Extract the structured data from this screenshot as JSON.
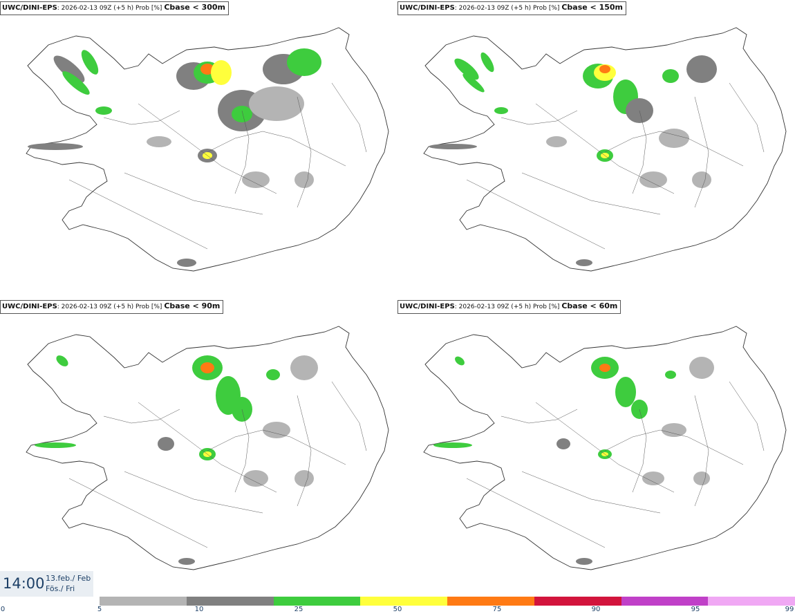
{
  "panels": [
    {
      "model": "UWC/DINI-EPS",
      "info": ": 2026-02-13 09Z (+5 h) Prob [%]",
      "threshold": "Cbase < 300m"
    },
    {
      "model": "UWC/DINI-EPS",
      "info": ": 2026-02-13 09Z (+5 h) Prob [%]",
      "threshold": "Cbase < 150m"
    },
    {
      "model": "UWC/DINI-EPS",
      "info": ": 2026-02-13 09Z (+5 h) Prob [%]",
      "threshold": "Cbase < 90m"
    },
    {
      "model": "UWC/DINI-EPS",
      "info": ": 2026-02-13 09Z (+5 h) Prob [%]",
      "threshold": "Cbase < 60m"
    }
  ],
  "time": {
    "hour": "14:00",
    "date": "13.feb./ Feb",
    "weekday": "Fös./ Fri"
  },
  "legend": {
    "ticks": [
      "0",
      "5",
      "10",
      "25",
      "50",
      "75",
      "90",
      "95",
      "99"
    ],
    "colors": [
      "#b4b4b4",
      "#808080",
      "#3ecc3e",
      "#ffff3c",
      "#ff7a14",
      "#d2143c",
      "#c040c8",
      "#f0a8f4"
    ]
  }
}
